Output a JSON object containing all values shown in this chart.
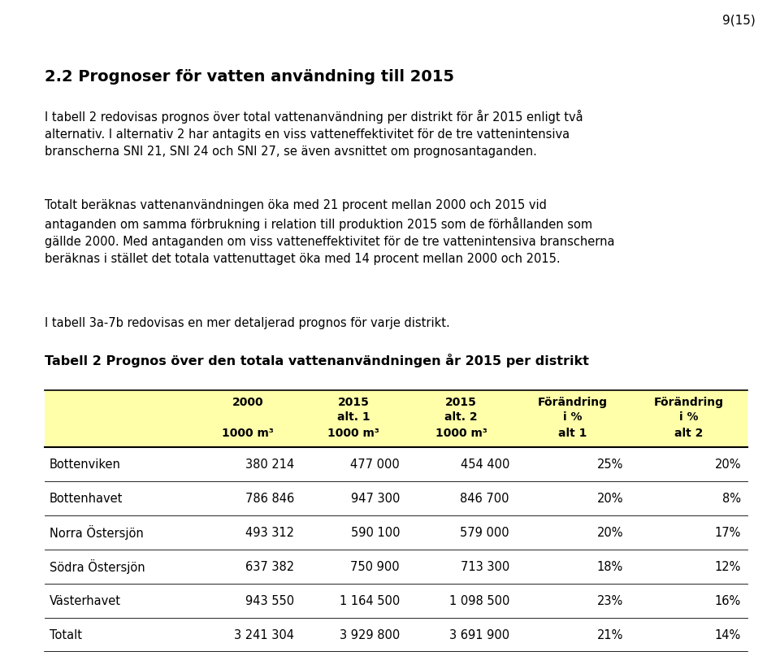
{
  "page_number": "9(15)",
  "section_title": "2.2 Prognoser för vatten användning till 2015",
  "para1": "I tabell 2 redovisas prognos över total vattenanvändning per distrikt för år 2015 enligt två\nalternativ. I alternativ 2 har antagits en viss vatteneffektivitet för de tre vattenintensiva\nbranscherna SNI 21, SNI 24 och SNI 27, se även avsnittet om prognosantaganden.",
  "para2": "Totalt beräknas vattenanvändningen öka med 21 procent mellan 2000 och 2015 vid\nantaganden om samma förbrukning i relation till produktion 2015 som de förhållanden som\ngällde 2000. Med antaganden om viss vatteneffektivitet för de tre vattenintensiva branscherna\nberäknas i stället det totala vattenuttaget öka med 14 procent mellan 2000 och 2015.",
  "para3": "I tabell 3a-7b redovisas en mer detaljerad prognos för varje distrikt.",
  "table_title": "Tabell 2 Prognos över den totala vattenanvändningen år 2015 per distrikt",
  "rows": [
    [
      "Bottenviken",
      "380 214",
      "477 000",
      "454 400",
      "25%",
      "20%"
    ],
    [
      "Bottenhavet",
      "786 846",
      "947 300",
      "846 700",
      "20%",
      "8%"
    ],
    [
      "Norra Östersjön",
      "493 312",
      "590 100",
      "579 000",
      "20%",
      "17%"
    ],
    [
      "Södra Östersjön",
      "637 382",
      "750 900",
      "713 300",
      "18%",
      "12%"
    ],
    [
      "Västerhavet",
      "943 550",
      "1 164 500",
      "1 098 500",
      "23%",
      "16%"
    ],
    [
      "Totalt",
      "3 241 304",
      "3 929 800",
      "3 691 900",
      "21%",
      "14%"
    ]
  ],
  "header_bg": "#FFFFAA",
  "bg_color": "#FFFFFF",
  "text_color": "#000000"
}
